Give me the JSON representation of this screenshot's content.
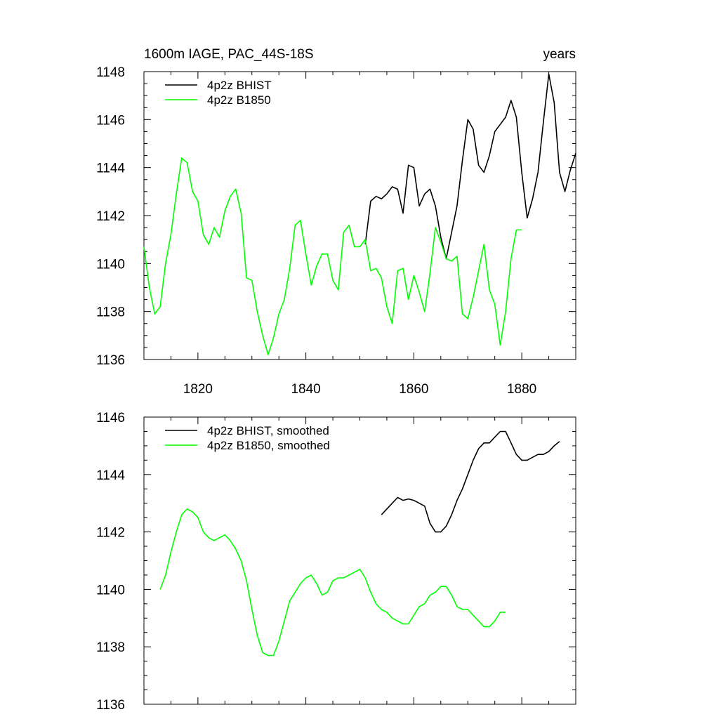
{
  "chart_data": [
    {
      "type": "line",
      "title": "1600m IAGE, PAC_44S-18S",
      "title_right": "years",
      "xlim": [
        1810,
        1890
      ],
      "ylim": [
        1136,
        1148
      ],
      "xticks": [
        1820,
        1840,
        1860,
        1880
      ],
      "yticks": [
        1136,
        1138,
        1140,
        1142,
        1144,
        1146,
        1148
      ],
      "show_xtick_labels": true,
      "legend_position": "top-left",
      "grid": false,
      "series": [
        {
          "name": "4p2z BHIST",
          "color": "#000000",
          "x": [
            1851,
            1852,
            1853,
            1854,
            1855,
            1856,
            1857,
            1858,
            1859,
            1860,
            1861,
            1862,
            1863,
            1864,
            1865,
            1866,
            1867,
            1868,
            1869,
            1870,
            1871,
            1872,
            1873,
            1874,
            1875,
            1876,
            1877,
            1878,
            1879,
            1880,
            1881,
            1882,
            1883,
            1884,
            1885,
            1886,
            1887,
            1888,
            1889,
            1890
          ],
          "y": [
            1140.8,
            1142.6,
            1142.8,
            1142.7,
            1142.9,
            1143.2,
            1143.1,
            1142.1,
            1144.1,
            1144.0,
            1142.4,
            1142.9,
            1143.1,
            1142.4,
            1141.1,
            1140.2,
            1141.3,
            1142.4,
            1144.3,
            1146.0,
            1145.6,
            1144.1,
            1143.8,
            1144.5,
            1145.5,
            1145.8,
            1146.1,
            1146.8,
            1146.1,
            1143.8,
            1141.9,
            1142.7,
            1143.8,
            1145.9,
            1147.9,
            1146.7,
            1143.8,
            1143.0,
            1143.9,
            1144.6
          ]
        },
        {
          "name": "4p2z B1850",
          "color": "#00ff00",
          "x": [
            1810,
            1811,
            1812,
            1813,
            1814,
            1815,
            1816,
            1817,
            1818,
            1819,
            1820,
            1821,
            1822,
            1823,
            1824,
            1825,
            1826,
            1827,
            1828,
            1829,
            1830,
            1831,
            1832,
            1833,
            1834,
            1835,
            1836,
            1837,
            1838,
            1839,
            1840,
            1841,
            1842,
            1843,
            1844,
            1845,
            1846,
            1847,
            1848,
            1849,
            1850,
            1851,
            1852,
            1853,
            1854,
            1855,
            1856,
            1857,
            1858,
            1859,
            1860,
            1861,
            1862,
            1863,
            1864,
            1865,
            1866,
            1867,
            1868,
            1869,
            1870,
            1871,
            1872,
            1873,
            1874,
            1875,
            1876,
            1877,
            1878,
            1879,
            1880
          ],
          "y": [
            1140.7,
            1139.0,
            1137.9,
            1138.2,
            1140.0,
            1141.2,
            1142.9,
            1144.4,
            1144.2,
            1143.0,
            1142.6,
            1141.2,
            1140.8,
            1141.5,
            1141.1,
            1142.2,
            1142.8,
            1143.1,
            1142.1,
            1139.4,
            1139.3,
            1138.0,
            1137.0,
            1136.2,
            1136.9,
            1137.9,
            1138.5,
            1139.8,
            1141.6,
            1141.8,
            1140.4,
            1139.1,
            1139.9,
            1140.4,
            1140.4,
            1139.3,
            1138.9,
            1141.3,
            1141.6,
            1140.7,
            1140.7,
            1141.0,
            1139.7,
            1139.8,
            1139.4,
            1138.2,
            1137.5,
            1139.7,
            1139.8,
            1138.5,
            1139.5,
            1138.8,
            1138.0,
            1139.6,
            1141.5,
            1140.9,
            1140.2,
            1140.1,
            1140.3,
            1137.9,
            1137.7,
            1138.6,
            1139.7,
            1140.8,
            1138.9,
            1138.3,
            1136.6,
            1138.0,
            1140.2,
            1141.4,
            1141.4
          ]
        }
      ]
    },
    {
      "type": "line",
      "title": "",
      "xlim": [
        1810,
        1890
      ],
      "ylim": [
        1136,
        1146
      ],
      "xticks": [
        1820,
        1840,
        1860,
        1880
      ],
      "yticks": [
        1136,
        1138,
        1140,
        1142,
        1144,
        1146
      ],
      "show_xtick_labels": false,
      "legend_position": "top-left",
      "grid": false,
      "series": [
        {
          "name": "4p2z BHIST, smoothed",
          "color": "#000000",
          "x": [
            1854,
            1855,
            1856,
            1857,
            1858,
            1859,
            1860,
            1861,
            1862,
            1863,
            1864,
            1865,
            1866,
            1867,
            1868,
            1869,
            1870,
            1871,
            1872,
            1873,
            1874,
            1875,
            1876,
            1877,
            1878,
            1879,
            1880,
            1881,
            1882,
            1883,
            1884,
            1885,
            1886,
            1887
          ],
          "y": [
            1142.6,
            1142.8,
            1143.0,
            1143.2,
            1143.1,
            1143.15,
            1143.1,
            1143.0,
            1142.9,
            1142.3,
            1142.0,
            1142.0,
            1142.2,
            1142.6,
            1143.1,
            1143.5,
            1144.0,
            1144.5,
            1144.9,
            1145.1,
            1145.1,
            1145.3,
            1145.5,
            1145.5,
            1145.1,
            1144.7,
            1144.5,
            1144.5,
            1144.6,
            1144.7,
            1144.7,
            1144.8,
            1145.0,
            1145.15
          ]
        },
        {
          "name": "4p2z B1850, smoothed",
          "color": "#00ff00",
          "x": [
            1813,
            1814,
            1815,
            1816,
            1817,
            1818,
            1819,
            1820,
            1821,
            1822,
            1823,
            1824,
            1825,
            1826,
            1827,
            1828,
            1829,
            1830,
            1831,
            1832,
            1833,
            1834,
            1835,
            1836,
            1837,
            1838,
            1839,
            1840,
            1841,
            1842,
            1843,
            1844,
            1845,
            1846,
            1847,
            1848,
            1849,
            1850,
            1851,
            1852,
            1853,
            1854,
            1855,
            1856,
            1857,
            1858,
            1859,
            1860,
            1861,
            1862,
            1863,
            1864,
            1865,
            1866,
            1867,
            1868,
            1869,
            1870,
            1871,
            1872,
            1873,
            1874,
            1875,
            1876,
            1877
          ],
          "y": [
            1140.0,
            1140.5,
            1141.3,
            1142.0,
            1142.6,
            1142.8,
            1142.7,
            1142.5,
            1142.0,
            1141.8,
            1141.7,
            1141.8,
            1141.9,
            1141.7,
            1141.4,
            1141.0,
            1140.3,
            1139.3,
            1138.4,
            1137.8,
            1137.7,
            1137.7,
            1138.2,
            1138.9,
            1139.6,
            1139.9,
            1140.2,
            1140.4,
            1140.5,
            1140.2,
            1139.8,
            1139.9,
            1140.3,
            1140.4,
            1140.4,
            1140.5,
            1140.6,
            1140.7,
            1140.4,
            1139.9,
            1139.5,
            1139.3,
            1139.2,
            1139.0,
            1138.9,
            1138.8,
            1138.8,
            1139.1,
            1139.4,
            1139.5,
            1139.8,
            1139.9,
            1140.1,
            1140.1,
            1139.8,
            1139.4,
            1139.3,
            1139.3,
            1139.1,
            1138.9,
            1138.7,
            1138.7,
            1138.9,
            1139.2,
            1139.2
          ]
        }
      ]
    }
  ]
}
